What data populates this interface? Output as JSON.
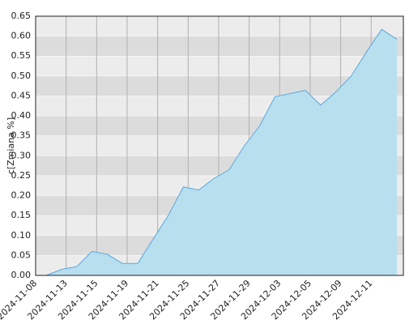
{
  "chart_data": {
    "type": "area",
    "y_label": "c[Zmiana %]",
    "categories": [
      "2024-11-08",
      null,
      "2024-11-13",
      null,
      "2024-11-15",
      null,
      "2024-11-19",
      null,
      "2024-11-21",
      null,
      "2024-11-25",
      null,
      "2024-11-27",
      null,
      "2024-11-29",
      null,
      "2024-12-03",
      null,
      "2024-12-05",
      null,
      "2024-12-09",
      null,
      "2024-12-11",
      null
    ],
    "values": [
      0.0,
      0.015,
      0.022,
      0.06,
      0.053,
      0.03,
      0.03,
      0.09,
      0.15,
      0.222,
      0.214,
      0.243,
      0.265,
      0.325,
      0.375,
      0.448,
      0.456,
      0.464,
      0.427,
      0.46,
      0.5,
      0.56,
      0.617,
      0.592
    ],
    "color": "#5aa8e0",
    "fill": "#b8dfee",
    "ylim": [
      0,
      0.65
    ],
    "yticks": [
      {
        "value": 0,
        "label": "0.00"
      },
      0.05,
      {
        "value": 0.1,
        "label": "0.10"
      },
      0.15,
      {
        "value": 0.2,
        "label": "0.20"
      },
      0.25,
      {
        "value": 0.3,
        "label": "0.30"
      },
      0.35,
      {
        "value": 0.4,
        "label": "0.40"
      },
      0.45,
      {
        "value": 0.5,
        "label": "0.50"
      },
      0.55,
      {
        "value": 0.6,
        "label": "0.60"
      },
      0.65
    ],
    "grid": true
  }
}
